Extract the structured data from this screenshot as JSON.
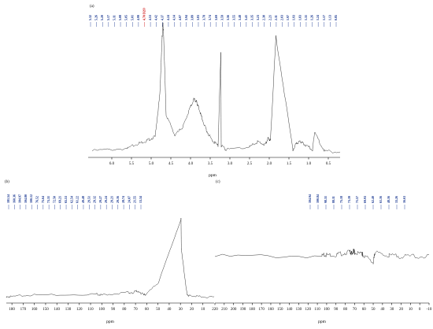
{
  "colors": {
    "label": "#0a2a8a",
    "highlight": "#cc0000",
    "trace": "#222222"
  },
  "chart_data": [
    {
      "type": "line",
      "panel_label": "(a)",
      "xlabel": "ppm",
      "xlim": [
        6.6,
        0.2
      ],
      "x_reversed": true,
      "xticks": [
        6.0,
        5.5,
        5.0,
        4.5,
        4.0,
        3.5,
        3.0,
        2.5,
        2.0,
        1.5,
        1.0,
        0.5
      ],
      "xtick_labels": [
        "6.0",
        "5.5",
        "5.0",
        "4.5",
        "4.0",
        "3.5",
        "3.0",
        "2.5",
        "2.0",
        "1.5",
        "1.0",
        "0.5"
      ],
      "highlight_label": "4.70 D2O",
      "peak_labels": [
        "5.32",
        "5.26",
        "5.20",
        "5.17",
        "5.11",
        "5.08",
        "5.05",
        "5.01",
        "4.99",
        "4.70 D2O",
        "4.53",
        "4.42",
        "4.37",
        "4.24",
        "4.14",
        "4.07",
        "3.94",
        "3.89",
        "3.83",
        "3.78",
        "3.74",
        "3.69",
        "3.59",
        "3.56",
        "3.55",
        "3.48",
        "3.41",
        "3.35",
        "3.23",
        "2.30",
        "2.21",
        "2.11",
        "2.03",
        "1.97",
        "1.93",
        "1.83",
        "1.31",
        "1.26",
        "1.24",
        "1.17",
        "1.13",
        "0.85"
      ],
      "series": [
        {
          "x": [
            6.5,
            5.6,
            5.3,
            5.1,
            4.9,
            4.78,
            4.72,
            4.7,
            4.68,
            4.62,
            4.4,
            4.2,
            4.05,
            3.92,
            3.85,
            3.8,
            3.72,
            3.6,
            3.45,
            3.3,
            3.23,
            3.22,
            3.1,
            2.5,
            2.3,
            2.1,
            2.03,
            1.97,
            1.83,
            1.4,
            1.3,
            1.2,
            1.1,
            0.9,
            0.85,
            0.6,
            0.2
          ],
          "y": [
            0.02,
            0.04,
            0.08,
            0.1,
            0.13,
            0.45,
            0.9,
            1.0,
            0.88,
            0.3,
            0.14,
            0.2,
            0.32,
            0.42,
            0.4,
            0.36,
            0.28,
            0.18,
            0.1,
            0.06,
            0.78,
            0.06,
            0.03,
            0.05,
            0.09,
            0.07,
            0.12,
            0.1,
            0.9,
            0.03,
            0.08,
            0.09,
            0.07,
            0.03,
            0.16,
            0.02,
            0.01
          ]
        }
      ]
    },
    {
      "type": "line",
      "panel_label": "(b)",
      "xlabel": "ppm",
      "xlim": [
        185,
        0
      ],
      "x_reversed": true,
      "xticks": [
        180,
        170,
        160,
        150,
        140,
        130,
        120,
        110,
        100,
        90,
        80,
        70,
        60,
        50,
        40,
        30,
        20,
        10
      ],
      "xtick_labels": [
        "180",
        "170",
        "160",
        "150",
        "140",
        "130",
        "120",
        "110",
        "100",
        "90",
        "80",
        "70",
        "60",
        "50",
        "40",
        "30",
        "20",
        "10"
      ],
      "peak_labels": [
        "181.54",
        "160.36",
        "104.97",
        "104.80",
        "100.12",
        "76.52",
        "75.64",
        "73.31",
        "72.50",
        "69.21",
        "65.53",
        "62.54",
        "61.22",
        "49.48",
        "29.51",
        "29.32",
        "29.27",
        "29.24",
        "29.21",
        "29.16",
        "28.74",
        "24.07",
        "21.55",
        "13.34"
      ],
      "series": [
        {
          "x": [
            185,
            181.5,
            160.4,
            105,
            100.1,
            76.5,
            73.3,
            69.2,
            65.5,
            62.5,
            61.2,
            49.5,
            29.5,
            29.2,
            24.1,
            21.6,
            13.3,
            0
          ],
          "y": [
            0.02,
            0.03,
            0.05,
            0.06,
            0.05,
            0.08,
            0.07,
            0.1,
            0.07,
            0.06,
            0.05,
            0.2,
            0.97,
            0.6,
            0.05,
            0.04,
            0.03,
            0.02
          ]
        }
      ]
    },
    {
      "type": "line",
      "panel_label": "(c)",
      "xlabel": "ppm",
      "xlim": [
        220,
        -10
      ],
      "x_reversed": true,
      "xticks": [
        220,
        210,
        200,
        190,
        180,
        170,
        160,
        150,
        140,
        130,
        120,
        110,
        100,
        90,
        80,
        70,
        60,
        50,
        40,
        30,
        20,
        10,
        0,
        -10
      ],
      "xtick_labels": [
        "220",
        "210",
        "200",
        "190",
        "180",
        "170",
        "160",
        "150",
        "140",
        "130",
        "120",
        "110",
        "100",
        "90",
        "80",
        "70",
        "60",
        "50",
        "40",
        "30",
        "20",
        "10",
        "0",
        "-10"
      ],
      "peak_labels": [
        "104.94",
        "100.84",
        "98.31",
        "88.11",
        "75.18",
        "73.39",
        "71.57",
        "69.93",
        "62.40",
        "61.16",
        "48.16",
        "33.26",
        "16.63"
      ],
      "series": [
        {
          "x": [
            220,
            105,
            100,
            88,
            75,
            73,
            71,
            70,
            62,
            61,
            50,
            48,
            33,
            16,
            -10
          ],
          "y": [
            0.5,
            0.52,
            0.54,
            0.55,
            0.62,
            0.58,
            0.65,
            0.6,
            0.56,
            0.55,
            0.35,
            0.6,
            0.52,
            0.51,
            0.5
          ]
        }
      ]
    }
  ]
}
